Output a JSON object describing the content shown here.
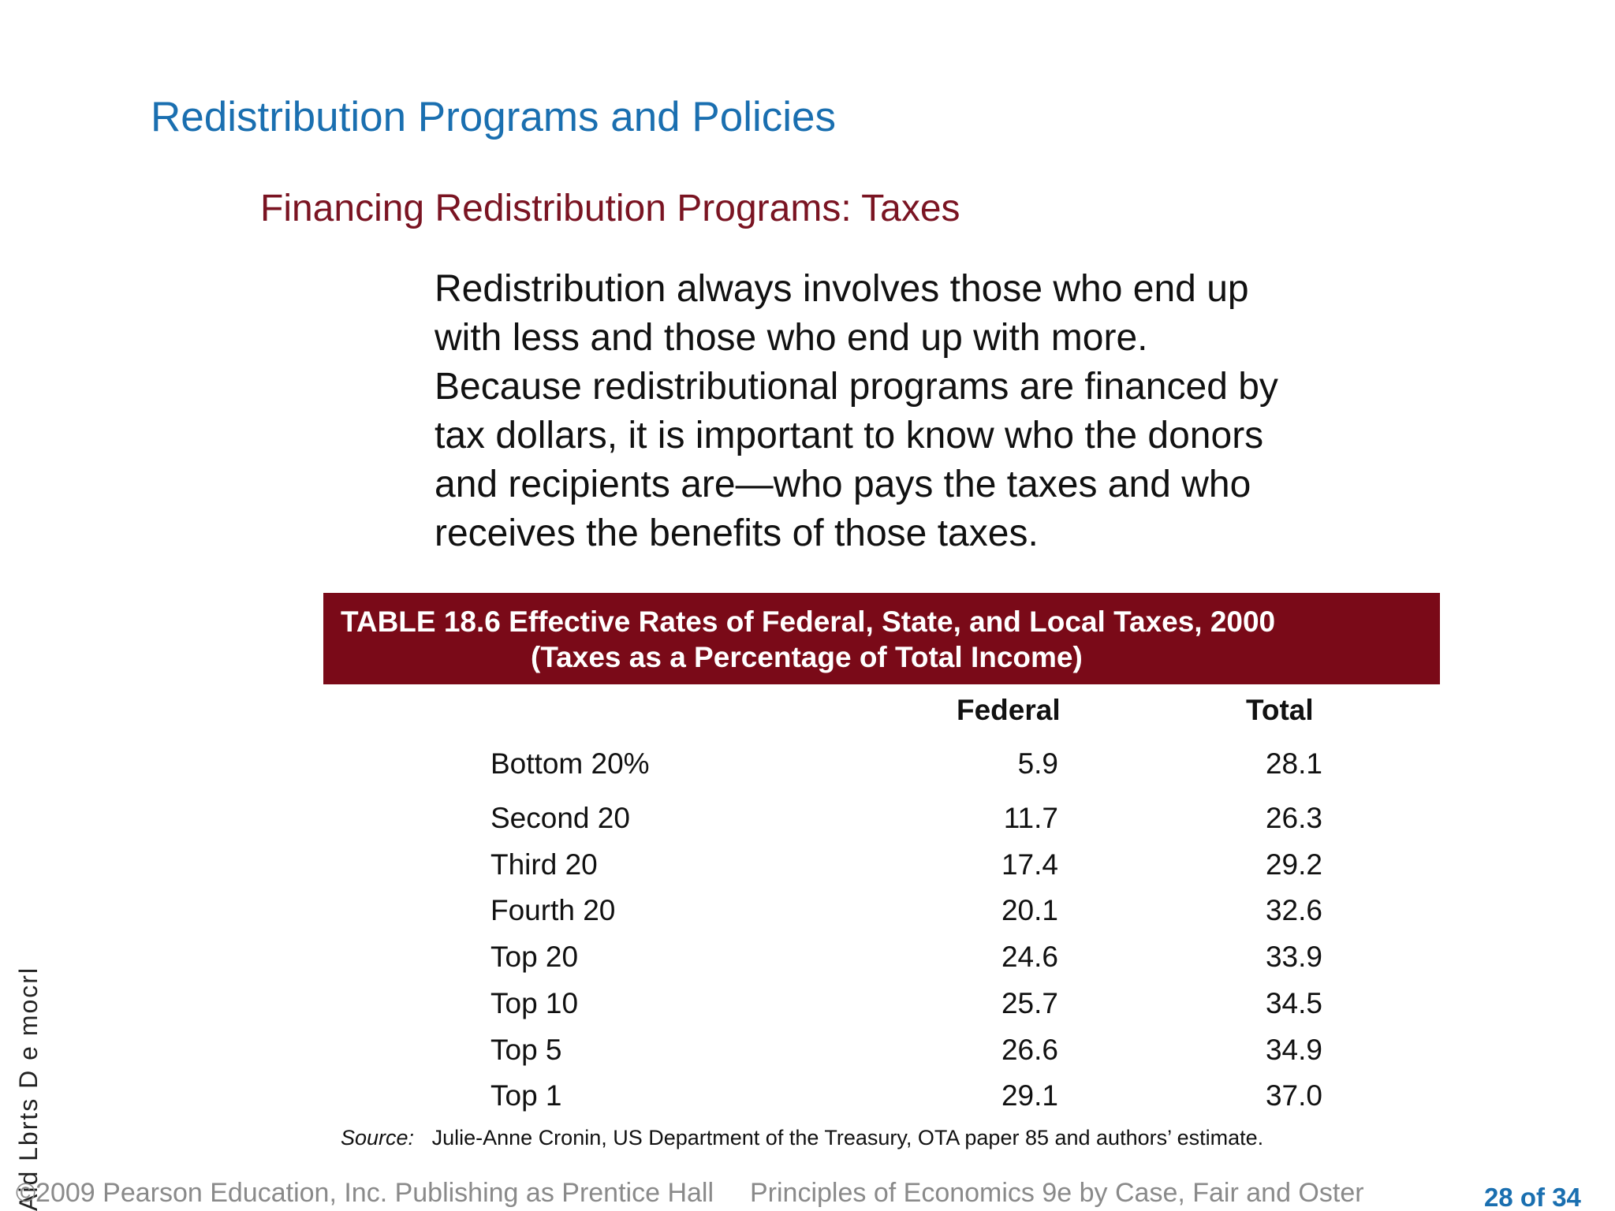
{
  "slide": {
    "title": "Redistribution Programs and Policies",
    "subtitle": "Financing Redistribution Programs: Taxes",
    "body_lines": [
      "Redistribution always involves those who end up",
      "with less and those who end up with more.",
      "Because redistributional programs are financed by",
      "tax dollars, it is important to know who the donors",
      "and recipients are—who pays the taxes and who",
      "receives the benefits of those taxes."
    ]
  },
  "table": {
    "title_line1": "TABLE 18.6  Effective Rates of Federal, State, and Local Taxes, 2000",
    "title_line2": "(Taxes as a Percentage of Total Income)",
    "columns": [
      "Federal",
      "Total"
    ],
    "rows": [
      {
        "label": "Bottom 20%",
        "federal": "5.9",
        "total": "28.1"
      },
      {
        "label": "Second 20",
        "federal": "11.7",
        "total": "26.3"
      },
      {
        "label": "Third 20",
        "federal": "17.4",
        "total": "29.2"
      },
      {
        "label": "Fourth 20",
        "federal": "20.1",
        "total": "32.6"
      },
      {
        "label": "Top 20",
        "federal": "24.6",
        "total": "33.9"
      },
      {
        "label": "Top 10",
        "federal": "25.7",
        "total": "34.5"
      },
      {
        "label": "Top 5",
        "federal": "26.6",
        "total": "34.9"
      },
      {
        "label": "Top 1",
        "federal": "29.1",
        "total": "37.0"
      }
    ],
    "source_label": "Source:",
    "source_text": "Julie-Anne Cronin, US Department of the Treasury, OTA paper 85 and authors’ estimate."
  },
  "footer": {
    "copyright": "©2009 Pearson Education, Inc. Publishing as Prentice Hall",
    "book": "Principles of Economics 9e by Case, Fair and Oster",
    "page": "28 of 34"
  },
  "side_text": "Aid Lbrts D e mocrl"
}
